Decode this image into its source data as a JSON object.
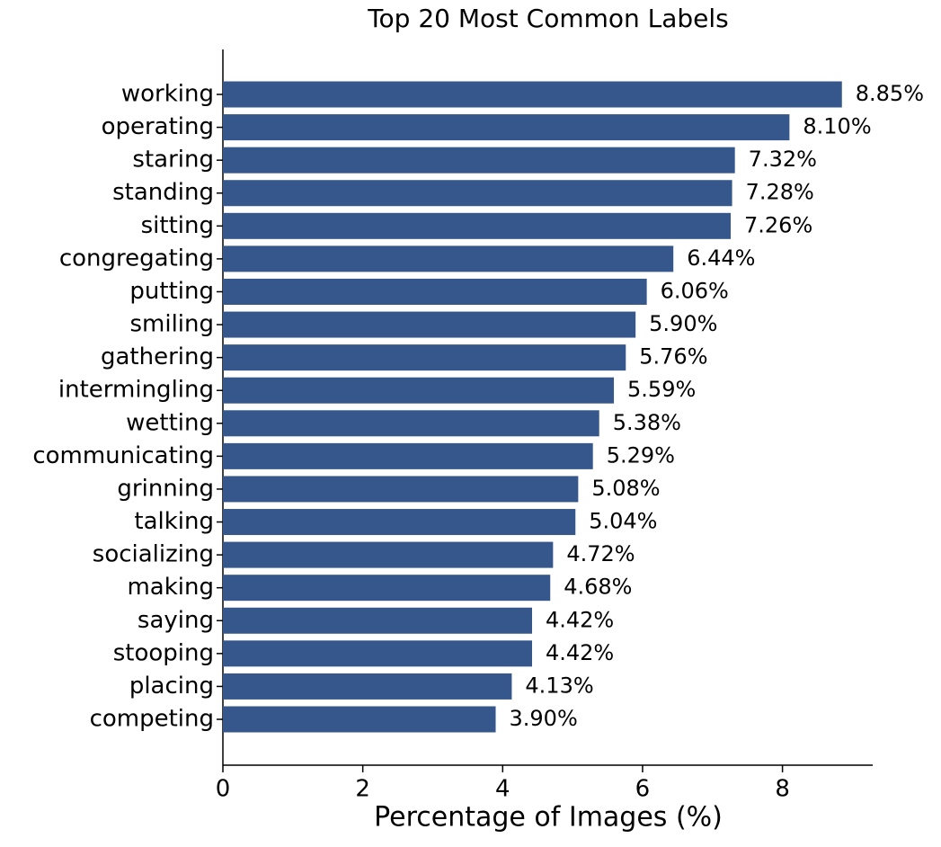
{
  "chart_data": {
    "type": "barh",
    "title": "Top 20 Most Common Labels",
    "xlabel": "Percentage of Images (%)",
    "categories": [
      "working",
      "operating",
      "staring",
      "standing",
      "sitting",
      "congregating",
      "putting",
      "smiling",
      "gathering",
      "intermingling",
      "wetting",
      "communicating",
      "grinning",
      "talking",
      "socializing",
      "making",
      "saying",
      "stooping",
      "placing",
      "competing"
    ],
    "values": [
      8.85,
      8.1,
      7.32,
      7.28,
      7.26,
      6.44,
      6.06,
      5.9,
      5.76,
      5.59,
      5.38,
      5.29,
      5.08,
      5.04,
      4.72,
      4.68,
      4.42,
      4.42,
      4.13,
      3.9
    ],
    "value_labels": [
      "8.85%",
      "8.10%",
      "7.32%",
      "7.28%",
      "7.26%",
      "6.44%",
      "6.06%",
      "5.90%",
      "5.76%",
      "5.59%",
      "5.38%",
      "5.29%",
      "5.08%",
      "5.04%",
      "4.72%",
      "4.68%",
      "4.42%",
      "4.42%",
      "4.13%",
      "3.90%"
    ],
    "color": "#36578b",
    "xlim": [
      0,
      9.29
    ],
    "xticks": [
      0,
      2,
      4,
      6,
      8
    ]
  }
}
